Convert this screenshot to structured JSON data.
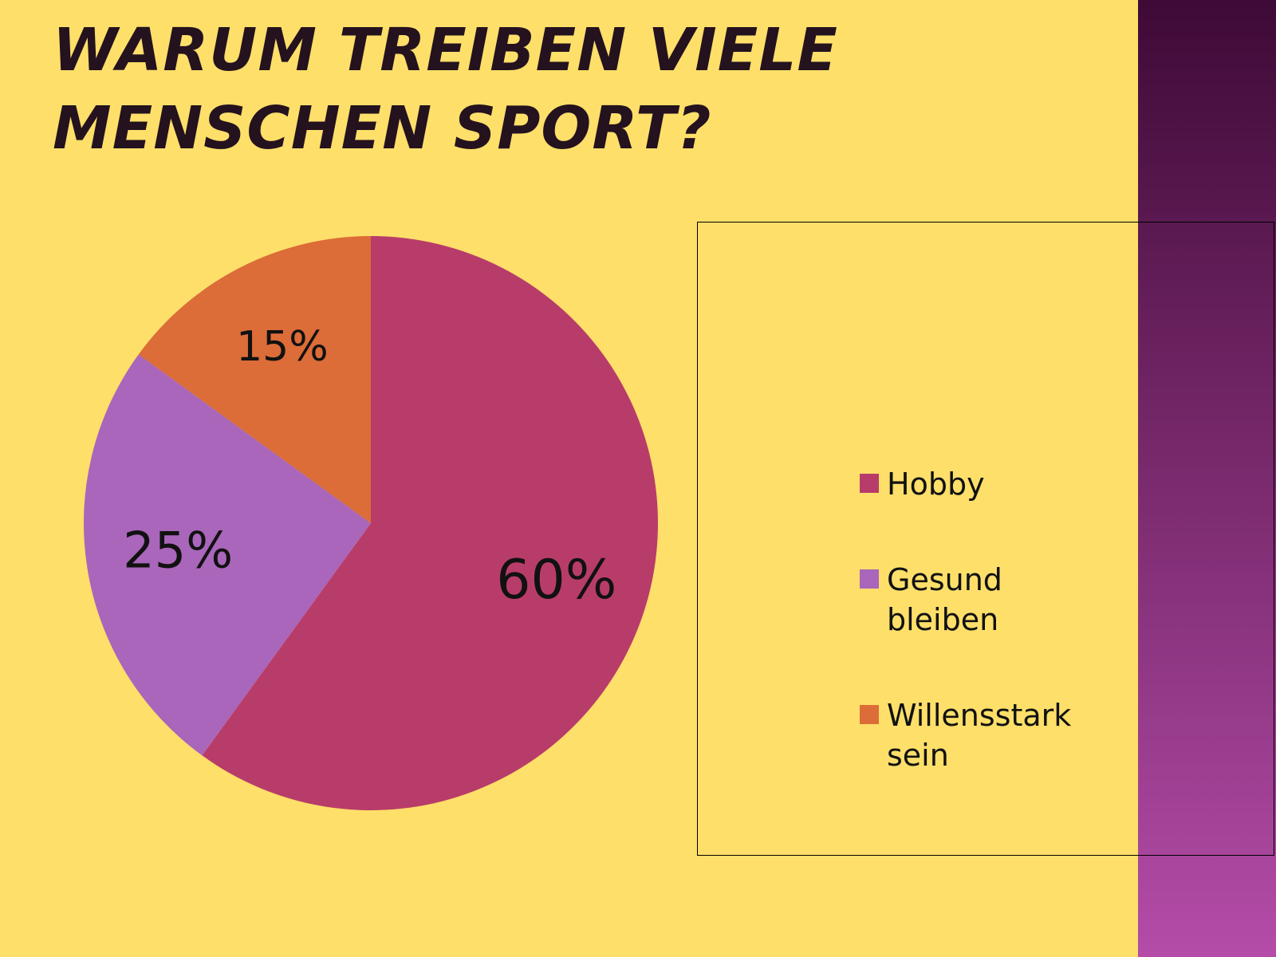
{
  "chart_data": {
    "type": "pie",
    "title": "WARUM TREIBEN VIELE MENSCHEN SPORT?",
    "categories": [
      "Hobby",
      "Gesund bleiben",
      "Willensstark sein"
    ],
    "values": [
      60,
      25,
      15
    ],
    "value_labels": [
      "60%",
      "25%",
      "15%"
    ],
    "colors": [
      "#b83c69",
      "#a966bb",
      "#dc6c38"
    ]
  }
}
